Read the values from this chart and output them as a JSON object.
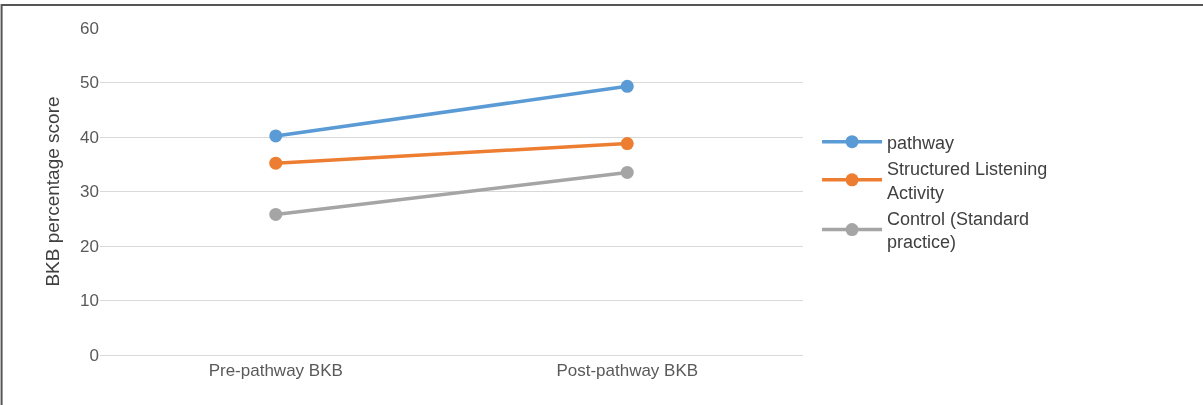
{
  "chart_data": {
    "type": "line",
    "ylabel": "BKB percentage score",
    "categories": [
      "Pre-pathway BKB",
      "Post-pathway BKB"
    ],
    "series": [
      {
        "name": "pathway",
        "color": "#5b9bd5",
        "values": [
          40.2,
          49.3
        ]
      },
      {
        "name": "Structured Listening Activity",
        "color": "#ed7d31",
        "values": [
          35.2,
          38.8
        ]
      },
      {
        "name": "Control (Standard practice)",
        "color": "#a5a5a5",
        "values": [
          25.8,
          33.5
        ]
      }
    ],
    "ylim": [
      0,
      60
    ],
    "yticks": [
      0,
      10,
      20,
      30,
      40,
      50,
      60
    ],
    "grid": "y",
    "legend": "right",
    "marker": "circle",
    "line_style": "solid"
  }
}
